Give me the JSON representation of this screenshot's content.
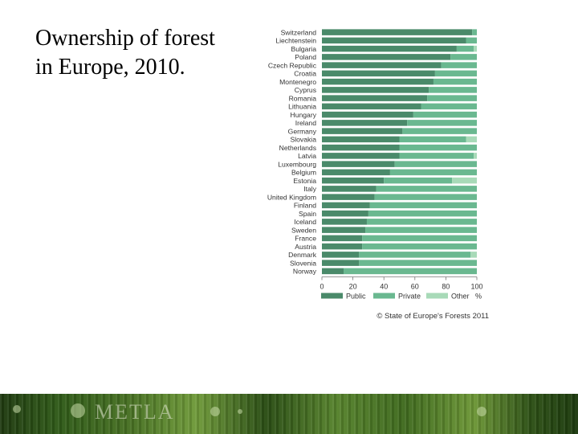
{
  "slide": {
    "title_lines": [
      "Ownership of forest",
      "in Europe, 2010."
    ]
  },
  "chart_data": {
    "type": "bar",
    "orientation": "horizontal",
    "stacked": true,
    "categories": [
      "Switzerland",
      "Liechtenstein",
      "Bulgaria",
      "Poland",
      "Czech Republic",
      "Croatia",
      "Montenegro",
      "Cyprus",
      "Romania",
      "Lithuania",
      "Hungary",
      "Ireland",
      "Germany",
      "Slovakia",
      "Netherlands",
      "Latvia",
      "Luxembourg",
      "Belgium",
      "Estonia",
      "Italy",
      "United Kingdom",
      "Finland",
      "Spain",
      "Iceland",
      "Sweden",
      "France",
      "Austria",
      "Denmark",
      "Slovenia",
      "Norway"
    ],
    "series": [
      {
        "name": "Public",
        "color": "#4a8a6a",
        "values": [
          97,
          93,
          87,
          83,
          77,
          73,
          72,
          69,
          68,
          64,
          59,
          55,
          52,
          50,
          50,
          50,
          47,
          44,
          40,
          35,
          34,
          31,
          30,
          29,
          28,
          26,
          26,
          24,
          24,
          14
        ]
      },
      {
        "name": "Private",
        "color": "#6ab890",
        "values": [
          3,
          7,
          11,
          17,
          23,
          27,
          28,
          31,
          32,
          36,
          41,
          45,
          48,
          43,
          50,
          48,
          53,
          56,
          44,
          65,
          66,
          69,
          70,
          71,
          72,
          74,
          74,
          72,
          76,
          86
        ]
      },
      {
        "name": "Other",
        "color": "#a8dab8",
        "values": [
          0,
          0,
          2,
          0,
          0,
          0,
          0,
          0,
          0,
          0,
          0,
          0,
          0,
          7,
          0,
          2,
          0,
          0,
          16,
          0,
          0,
          0,
          0,
          0,
          0,
          0,
          0,
          4,
          0,
          0
        ]
      }
    ],
    "x_ticks": [
      "0",
      "20",
      "40",
      "60",
      "80",
      "100"
    ],
    "x_unit": "%",
    "xlim": [
      0,
      100
    ],
    "legend_position": "bottom",
    "source": "© State of Europe's Forests 2011"
  },
  "footer": {
    "logo_text": "METLA"
  }
}
